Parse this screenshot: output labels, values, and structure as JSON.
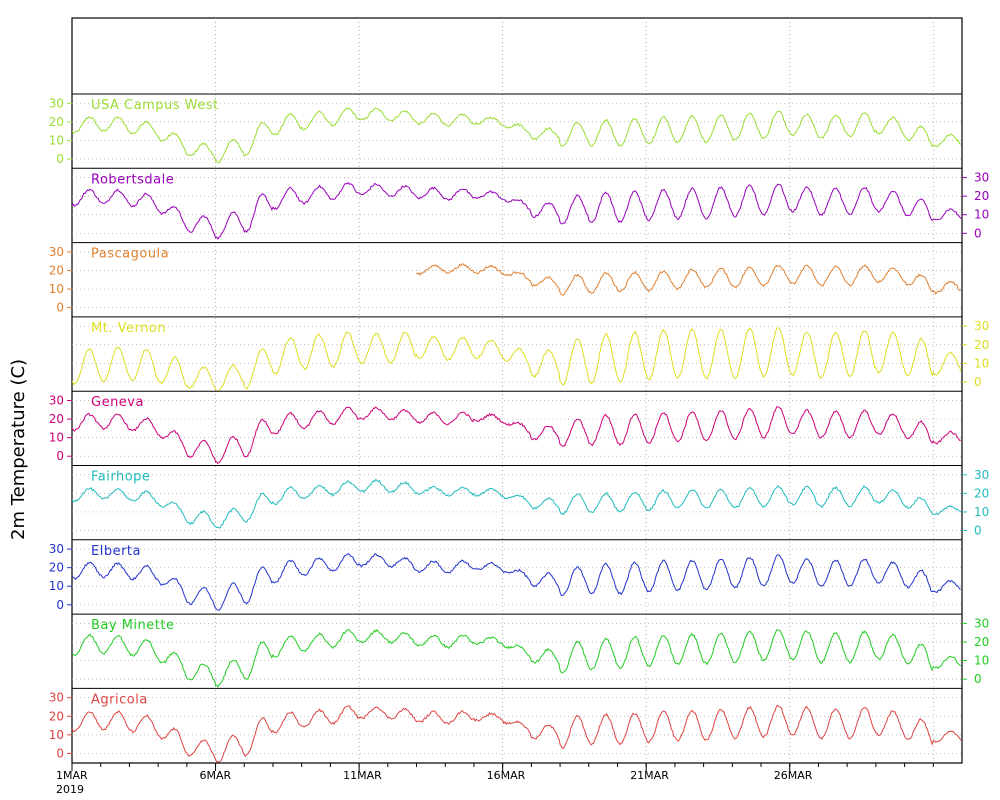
{
  "chart_data": {
    "type": "line",
    "ylabel": "2m Temperature (C)",
    "x_range": [
      "2019-03-01",
      "2019-03-31"
    ],
    "x_ticks": [
      {
        "date": "2019-03-01",
        "label": "1MAR",
        "sublabel": "2019"
      },
      {
        "date": "2019-03-06",
        "label": "6MAR"
      },
      {
        "date": "2019-03-11",
        "label": "11MAR"
      },
      {
        "date": "2019-03-16",
        "label": "16MAR"
      },
      {
        "date": "2019-03-21",
        "label": "21MAR"
      },
      {
        "date": "2019-03-26",
        "label": "26MAR"
      }
    ],
    "ylim": [
      -5,
      35
    ],
    "y_ticks": [
      0,
      10,
      20,
      30
    ],
    "grid": true,
    "series": [
      {
        "name": "USA Campus West",
        "color": "#99dd33",
        "axis_side": "left",
        "mean": [
          18,
          19,
          18,
          15,
          6,
          3,
          7,
          18,
          20,
          22,
          24,
          24,
          22,
          21,
          21,
          20,
          14,
          13,
          14,
          14,
          15,
          16,
          16,
          17,
          18,
          19,
          17,
          18,
          19,
          16,
          10
        ],
        "amp": [
          4,
          4,
          4,
          4,
          4,
          5,
          6,
          5,
          4,
          4,
          3,
          3,
          3,
          3,
          2,
          2,
          3,
          6,
          7,
          7,
          7,
          7,
          7,
          7,
          7,
          6,
          6,
          6,
          5,
          5,
          3
        ]
      },
      {
        "name": "Robertsdale",
        "color": "#9900bb",
        "axis_side": "right",
        "mean": [
          19,
          20,
          19,
          16,
          6,
          3,
          7,
          18,
          20,
          22,
          24,
          23,
          22,
          21,
          21,
          20,
          13,
          12,
          14,
          14,
          15,
          16,
          16,
          17,
          18,
          19,
          17,
          17,
          18,
          16,
          10
        ],
        "amp": [
          4,
          4,
          4,
          4,
          5,
          6,
          7,
          5,
          4,
          4,
          3,
          3,
          3,
          3,
          2,
          2,
          4,
          7,
          8,
          8,
          8,
          8,
          8,
          8,
          8,
          7,
          7,
          7,
          6,
          6,
          3
        ]
      },
      {
        "name": "Pascagoula",
        "color": "#e08030",
        "axis_side": "left",
        "mean": [
          null,
          null,
          null,
          null,
          null,
          null,
          null,
          null,
          null,
          null,
          null,
          null,
          20,
          21,
          21,
          20,
          15,
          12,
          13,
          14,
          14,
          15,
          16,
          16,
          17,
          18,
          17,
          17,
          18,
          17,
          11
        ],
        "amp": [
          0,
          0,
          0,
          0,
          0,
          0,
          0,
          0,
          0,
          0,
          0,
          0,
          2,
          2,
          2,
          2,
          3,
          5,
          5,
          5,
          5,
          5,
          5,
          5,
          5,
          5,
          5,
          5,
          4,
          4,
          3
        ]
      },
      {
        "name": "Mt. Vernon",
        "color": "#dddd22",
        "axis_side": "right",
        "mean": [
          8,
          9,
          10,
          8,
          3,
          1,
          4,
          13,
          16,
          17,
          18,
          18,
          19,
          18,
          18,
          17,
          10,
          10,
          12,
          13,
          14,
          15,
          15,
          15,
          16,
          16,
          14,
          15,
          16,
          15,
          10
        ],
        "amp": [
          9,
          9,
          9,
          8,
          6,
          6,
          8,
          9,
          9,
          9,
          8,
          8,
          6,
          6,
          5,
          5,
          7,
          12,
          13,
          13,
          13,
          13,
          13,
          13,
          13,
          12,
          12,
          12,
          11,
          11,
          6
        ]
      },
      {
        "name": "Geneva",
        "color": "#cc0077",
        "axis_side": "left",
        "mean": [
          18,
          19,
          18,
          15,
          5,
          2,
          6,
          17,
          19,
          21,
          23,
          23,
          21,
          20,
          21,
          20,
          13,
          12,
          14,
          14,
          15,
          16,
          16,
          17,
          18,
          19,
          17,
          17,
          18,
          16,
          10
        ],
        "amp": [
          4,
          4,
          4,
          4,
          5,
          6,
          7,
          5,
          4,
          4,
          3,
          3,
          3,
          3,
          2,
          2,
          4,
          7,
          8,
          8,
          8,
          8,
          8,
          8,
          8,
          7,
          7,
          7,
          6,
          6,
          3
        ]
      },
      {
        "name": "Fairhope",
        "color": "#22bbbb",
        "axis_side": "right",
        "mean": [
          19,
          20,
          19,
          17,
          8,
          5,
          9,
          18,
          20,
          22,
          24,
          24,
          22,
          21,
          21,
          20,
          15,
          14,
          15,
          15,
          16,
          17,
          17,
          17,
          18,
          19,
          18,
          18,
          19,
          17,
          11
        ],
        "amp": [
          3,
          3,
          3,
          3,
          4,
          4,
          5,
          4,
          3,
          3,
          3,
          3,
          2,
          2,
          2,
          2,
          3,
          5,
          5,
          5,
          5,
          5,
          5,
          5,
          5,
          5,
          5,
          5,
          4,
          4,
          2
        ]
      },
      {
        "name": "Elberta",
        "color": "#2233cc",
        "axis_side": "left",
        "mean": [
          18,
          19,
          18,
          16,
          6,
          3,
          7,
          17,
          20,
          22,
          24,
          24,
          21,
          20,
          21,
          20,
          14,
          12,
          14,
          14,
          15,
          16,
          16,
          17,
          18,
          19,
          17,
          17,
          18,
          16,
          10
        ],
        "amp": [
          4,
          4,
          4,
          4,
          5,
          6,
          7,
          5,
          4,
          4,
          3,
          3,
          3,
          3,
          2,
          2,
          4,
          7,
          8,
          8,
          8,
          8,
          8,
          8,
          8,
          7,
          7,
          7,
          6,
          6,
          3
        ]
      },
      {
        "name": "Bay Minette",
        "color": "#22cc22",
        "axis_side": "right",
        "mean": [
          18,
          19,
          18,
          15,
          5,
          2,
          6,
          17,
          19,
          21,
          23,
          23,
          21,
          20,
          21,
          20,
          13,
          11,
          13,
          14,
          15,
          16,
          16,
          17,
          18,
          19,
          17,
          17,
          18,
          16,
          9
        ],
        "amp": [
          5,
          5,
          5,
          5,
          5,
          6,
          7,
          5,
          4,
          4,
          3,
          3,
          3,
          3,
          2,
          2,
          4,
          8,
          8,
          8,
          8,
          8,
          8,
          8,
          8,
          8,
          8,
          8,
          7,
          7,
          3
        ]
      },
      {
        "name": "Agricola",
        "color": "#dd4444",
        "axis_side": "left",
        "mean": [
          17,
          18,
          17,
          14,
          4,
          1,
          5,
          16,
          18,
          20,
          22,
          22,
          20,
          19,
          20,
          19,
          12,
          11,
          13,
          13,
          14,
          15,
          15,
          16,
          17,
          18,
          16,
          16,
          17,
          15,
          9
        ],
        "amp": [
          5,
          5,
          5,
          5,
          5,
          6,
          7,
          5,
          4,
          4,
          3,
          3,
          3,
          3,
          2,
          2,
          4,
          8,
          8,
          8,
          8,
          8,
          8,
          8,
          8,
          8,
          8,
          8,
          7,
          7,
          3
        ]
      }
    ]
  }
}
